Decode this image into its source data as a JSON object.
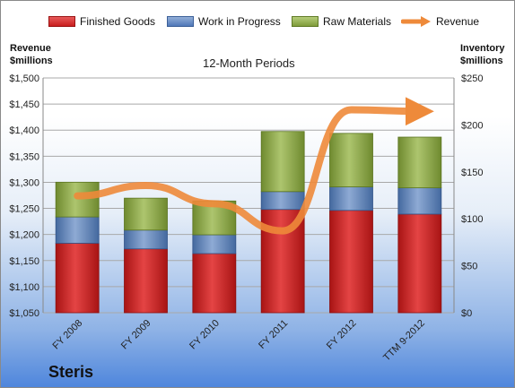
{
  "chart_data": {
    "type": "bar",
    "stacked": true,
    "title": "Steris",
    "subtitle": "12-Month Periods",
    "categories": [
      "FY 2008",
      "FY 2009",
      "FY 2010",
      "FY 2011",
      "FY 2012",
      "TTM 9-2012"
    ],
    "left_axis": {
      "label": "Revenue\n$millions",
      "range": [
        1050,
        1500
      ],
      "ticks": [
        "$1,050",
        "$1,100",
        "$1,150",
        "$1,200",
        "$1,250",
        "$1,300",
        "$1,350",
        "$1,400",
        "$1,450",
        "$1,500"
      ]
    },
    "right_axis": {
      "label": "Inventory\n$millions",
      "range": [
        0,
        250
      ],
      "ticks": [
        "$0",
        "$50",
        "$100",
        "$150",
        "$200",
        "$250"
      ]
    },
    "series": [
      {
        "name": "Finished Goods",
        "axis": "right",
        "values": [
          74,
          68,
          63,
          110,
          109,
          105
        ],
        "color": "#c81e1e"
      },
      {
        "name": "Work in Progress",
        "axis": "right",
        "values": [
          28,
          20,
          20,
          19,
          25,
          28
        ],
        "color": "#5b82c0"
      },
      {
        "name": "Raw Materials",
        "axis": "right",
        "values": [
          37,
          34,
          36,
          64,
          57,
          54
        ],
        "color": "#8aa746"
      },
      {
        "name": "Revenue",
        "type": "line",
        "axis": "left",
        "values": [
          1274,
          1294,
          1259,
          1207,
          1439,
          1436
        ],
        "color": "#ee8a3a"
      }
    ],
    "grid": true,
    "legend": "top"
  }
}
